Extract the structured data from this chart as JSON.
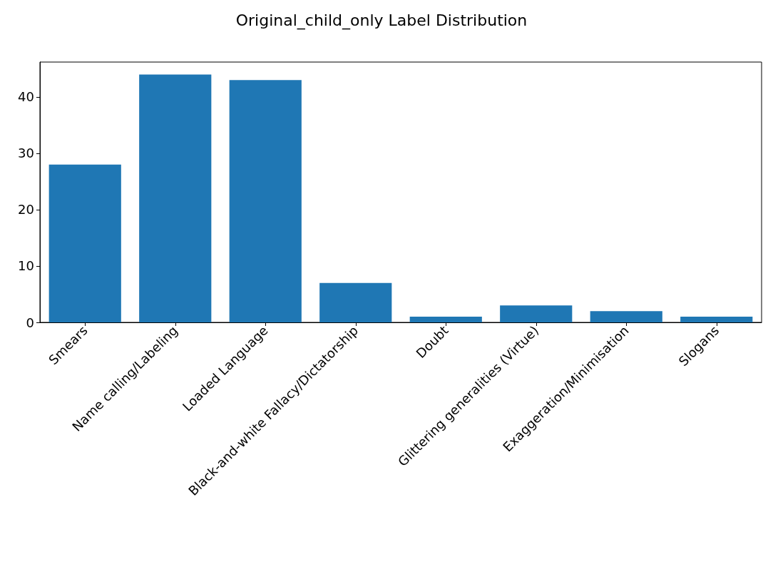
{
  "chart_data": {
    "type": "bar",
    "title": "Original_child_only Label Distribution",
    "categories": [
      "Smears",
      "Name calling/Labeling",
      "Loaded Language",
      "Black-and-white Fallacy/Dictatorship",
      "Doubt",
      "Glittering generalities (Virtue)",
      "Exaggeration/Minimisation",
      "Slogans"
    ],
    "values": [
      28,
      44,
      43,
      7,
      1,
      3,
      2,
      1
    ],
    "color": "#1f77b4",
    "ylim": [
      0,
      46.2
    ],
    "yticks": [
      0,
      10,
      20,
      30,
      40
    ],
    "grid": false
  }
}
